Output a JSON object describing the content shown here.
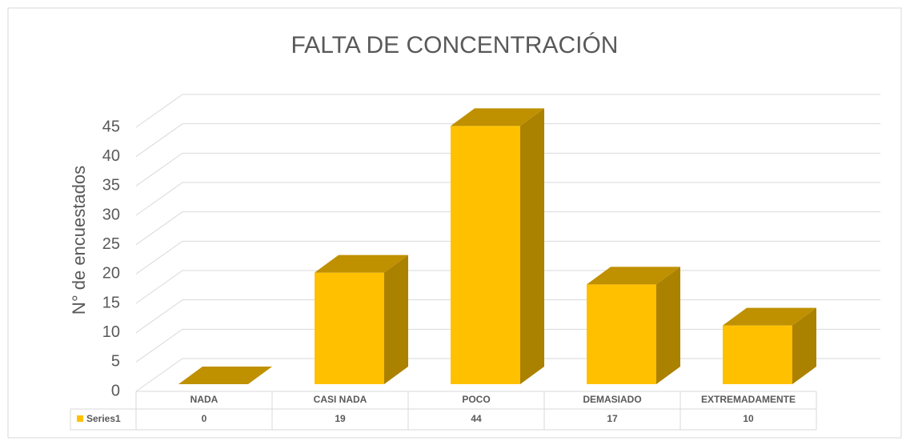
{
  "chart_data": {
    "type": "bar",
    "title": "FALTA DE CONCENTRACIÓN",
    "y_label": "N° de encuestados",
    "categories": [
      "NADA",
      "CASI NADA",
      "POCO",
      "DEMASIADO",
      "EXTREMADAMENTE"
    ],
    "series": [
      {
        "name": "Series1",
        "color": "#ffc000",
        "values": [
          0,
          19,
          44,
          17,
          10
        ]
      }
    ],
    "ylim": [
      0,
      45
    ],
    "yticks": [
      0,
      5,
      10,
      15,
      20,
      25,
      30,
      35,
      40,
      45
    ],
    "grid": true,
    "legend": "table"
  }
}
